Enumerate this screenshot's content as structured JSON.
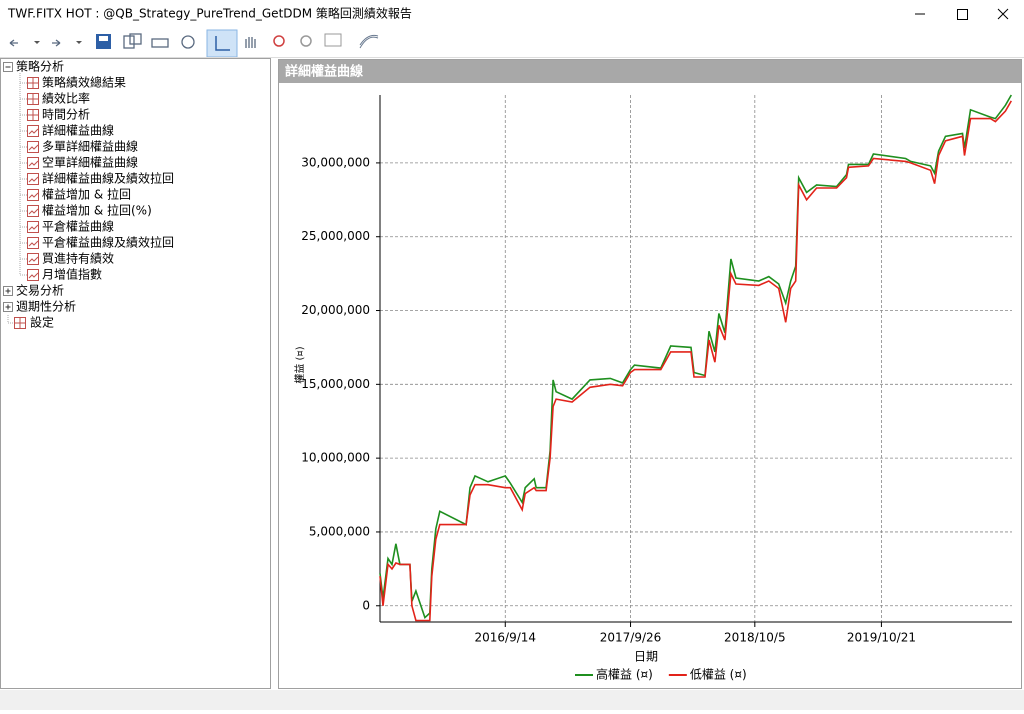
{
  "window": {
    "title": "TWF.FITX HOT : @QB_Strategy_PureTrend_GetDDM 策略回測績效報告"
  },
  "tree": [
    {
      "label": "策略分析",
      "expanded": true,
      "children": [
        "策略績效總結果",
        "績效比率",
        "時間分析",
        "詳細權益曲線",
        "多單詳細權益曲線",
        "空單詳細權益曲線",
        "詳細權益曲線及績效拉回",
        "權益增加 & 拉回",
        "權益增加 & 拉回(%)",
        "平倉權益曲線",
        "平倉權益曲線及績效拉回",
        "買進持有績效",
        "月增值指數"
      ]
    },
    {
      "label": "交易分析",
      "expanded": false
    },
    {
      "label": "週期性分析",
      "expanded": false
    },
    {
      "label": "設定"
    }
  ],
  "panel": {
    "title": "詳細權益曲線"
  },
  "chart_data": {
    "type": "line",
    "xlabel": "日期",
    "ylabel": "權益 (¤)",
    "x": [
      "2015/9/3",
      "2015/9/12",
      "2015/9/27",
      "2015/10/9",
      "2015/10/21",
      "2015/11/2",
      "2015/12/2",
      "2015/12/8",
      "2015/12/20",
      "2016/1/16",
      "2016/1/31",
      "2016/2/6",
      "2016/2/18",
      "2016/3/1",
      "2016/5/19",
      "2016/5/31",
      "2016/6/15",
      "2016/7/24",
      "2016/9/14",
      "2016/9/29",
      "2016/11/4",
      "2016/11/13",
      "2016/12/10",
      "2016/12/16",
      "2017/1/15",
      "2017/1/27",
      "2017/2/5",
      "2017/2/14",
      "2017/4/3",
      "2017/5/27",
      "2017/7/27",
      "2017/9/2",
      "2017/9/26",
      "2017/10/8",
      "2017/12/26",
      "2018/1/25",
      "2018/3/27",
      "2018/4/5",
      "2018/5/8",
      "2018/5/20",
      "2018/6/7",
      "2018/6/19",
      "2018/7/7",
      "2018/7/25",
      "2018/8/9",
      "2018/10/17",
      "2018/11/16",
      "2018/12/16",
      "2019/1/6",
      "2019/1/21",
      "2019/2/5",
      "2019/2/14",
      "2019/3/10",
      "2019/4/9",
      "2019/6/8",
      "2019/7/8",
      "2019/7/14",
      "2019/9/12",
      "2019/9/27",
      "2020/1/2",
      "2020/1/17",
      "2020/3/17",
      "2020/3/29",
      "2020/4/10",
      "2020/5/1",
      "2020/6/21",
      "2020/6/27",
      "2020/7/15",
      "2020/9/13",
      "2020/9/28",
      "2020/10/28",
      "2020/11/15"
    ],
    "series": [
      {
        "name": "高權益 (¤)",
        "color": "#1f8f1f",
        "values": [
          2200000,
          500000,
          3200000,
          2800000,
          4200000,
          2800000,
          2800000,
          300000,
          1000000,
          -800000,
          -500000,
          2500000,
          5200000,
          6400000,
          5500000,
          8000000,
          8800000,
          8400000,
          8800000,
          8300000,
          7000000,
          8000000,
          8600000,
          8000000,
          8000000,
          10500000,
          15300000,
          14500000,
          14000000,
          15300000,
          15400000,
          15100000,
          16000000,
          16300000,
          16100000,
          17600000,
          17500000,
          15800000,
          15600000,
          18600000,
          17200000,
          19800000,
          18500000,
          23500000,
          22200000,
          22000000,
          22300000,
          21800000,
          20500000,
          22000000,
          23000000,
          29000000,
          28000000,
          28500000,
          28400000,
          29200000,
          29900000,
          29900000,
          30600000,
          30300000,
          30100000,
          29800000,
          29300000,
          30800000,
          31800000,
          32000000,
          31000000,
          33600000,
          33100000,
          33000000,
          33900000,
          34600000
        ]
      },
      {
        "name": "低權益 (¤)",
        "color": "#e2231a",
        "values": [
          2000000,
          0,
          2800000,
          2500000,
          2900000,
          2800000,
          2800000,
          0,
          -1000000,
          -1000000,
          -1000000,
          2000000,
          4500000,
          5500000,
          5500000,
          7500000,
          8200000,
          8200000,
          8000000,
          8000000,
          6500000,
          7600000,
          8000000,
          7800000,
          7800000,
          10000000,
          13500000,
          14000000,
          13800000,
          14800000,
          15000000,
          14900000,
          15800000,
          16000000,
          16000000,
          17200000,
          17200000,
          15500000,
          15500000,
          18000000,
          16500000,
          19000000,
          18000000,
          22500000,
          21800000,
          21700000,
          22000000,
          21500000,
          19200000,
          21500000,
          22000000,
          28500000,
          27500000,
          28300000,
          28300000,
          29000000,
          29700000,
          29800000,
          30300000,
          30100000,
          30000000,
          29500000,
          28600000,
          30500000,
          31500000,
          31800000,
          30500000,
          33000000,
          33000000,
          32800000,
          33500000,
          34200000
        ]
      }
    ],
    "xlim": [
      "2015/9/3",
      "2020/11/17"
    ],
    "xticks": [
      "2016/9/14",
      "2017/9/26",
      "2018/10/5",
      "2019/10/21"
    ],
    "ylim": [
      -1100000,
      34600000
    ],
    "yticks": [
      0,
      {
        "value": 5000000,
        "label": "5,000,000"
      },
      {
        "value": 10000000,
        "label": "10,000,000"
      },
      {
        "value": 15000000,
        "label": "15,000,000"
      },
      {
        "value": 20000000,
        "label": "20,000,000"
      },
      {
        "value": 25000000,
        "label": "25,000,000"
      },
      {
        "value": 30000000,
        "label": "30,000,000"
      }
    ],
    "grid": true,
    "legend": "bottom"
  }
}
